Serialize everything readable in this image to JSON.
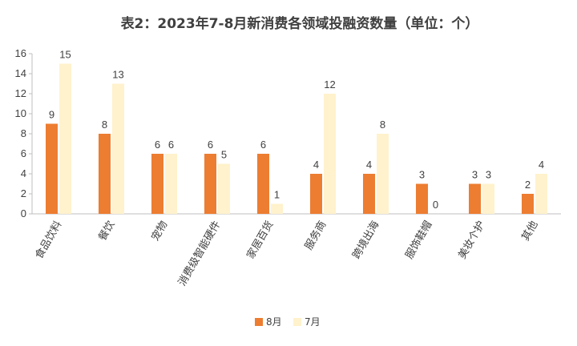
{
  "chart_data": {
    "type": "bar",
    "title": "表2：2023年7-8月新消费各领域投融资数量（单位：个）",
    "categories": [
      "食品饮料",
      "餐饮",
      "宠物",
      "消费级智能硬件",
      "家居百货",
      "服务商",
      "跨境出海",
      "服饰鞋帽",
      "美妆个护",
      "其他"
    ],
    "series": [
      {
        "name": "8月",
        "values": [
          9,
          8,
          6,
          6,
          6,
          4,
          4,
          3,
          3,
          2
        ]
      },
      {
        "name": "7月",
        "values": [
          15,
          13,
          6,
          5,
          1,
          12,
          8,
          0,
          3,
          4
        ]
      }
    ],
    "ylim": [
      0,
      16
    ],
    "yticks": [
      0,
      2,
      4,
      6,
      8,
      10,
      12,
      14,
      16
    ],
    "xlabel": "",
    "ylabel": "",
    "grid": false,
    "legend": "bottom",
    "colors": {
      "8月": "#ED7D31",
      "7月": "#FFF2CC"
    }
  }
}
